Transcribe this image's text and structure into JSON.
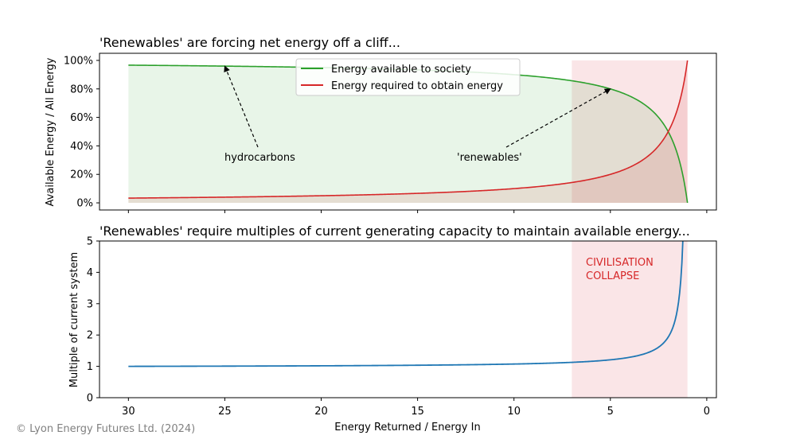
{
  "copyright": "© Lyon Energy Futures Ltd. (2024)",
  "colors": {
    "available": "#2ca02c",
    "required": "#d62728",
    "multiple": "#1f77b4",
    "collapse_region": "#f4c6c9",
    "collapse_text": "#d62728",
    "copyright": "#808080"
  },
  "chart_data": [
    {
      "type": "line",
      "title": "'Renewables' are forcing net energy off a cliff...",
      "xlabel": "",
      "ylabel": "Available Energy / All Energy",
      "x_from": 30,
      "x_to": 1,
      "xlim": [
        31.5,
        -0.5
      ],
      "ylim": [
        -0.05,
        1.05
      ],
      "x_ticks": [
        30,
        25,
        20,
        15,
        10,
        5,
        0
      ],
      "x_tick_labels": [
        "",
        "",
        "",
        "",
        "",
        "",
        ""
      ],
      "y_ticks": [
        0,
        0.2,
        0.4,
        0.6,
        0.8,
        1.0
      ],
      "y_tick_labels": [
        "0%",
        "20%",
        "40%",
        "60%",
        "80%",
        "100%"
      ],
      "series": [
        {
          "name": "Energy available to society",
          "formula": "1 - 1/x"
        },
        {
          "name": "Energy required to obtain energy",
          "formula": "1/x"
        }
      ],
      "shaded_region_x": [
        7,
        1
      ],
      "legend_position": "top-center",
      "annotations": [
        {
          "text": "hydrocarbons",
          "arrow_to": [
            25,
            0.96
          ]
        },
        {
          "text": "'renewables'",
          "arrow_to": [
            5,
            0.8
          ]
        }
      ]
    },
    {
      "type": "line",
      "title": "'Renewables' require multiples of current generating capacity to maintain available energy...",
      "xlabel": "Energy Returned / Energy In",
      "ylabel": "Multiple of current system",
      "xlim": [
        31.5,
        -0.5
      ],
      "ylim": [
        0,
        5
      ],
      "x_ticks": [
        30,
        25,
        20,
        15,
        10,
        5,
        0
      ],
      "x_tick_labels": [
        "30",
        "25",
        "20",
        "15",
        "10",
        "5",
        "0"
      ],
      "y_ticks": [
        0,
        1,
        2,
        3,
        4,
        5
      ],
      "y_tick_labels": [
        "0",
        "1",
        "2",
        "3",
        "4",
        "5"
      ],
      "series": [
        {
          "formula": "(1 - 1/30) / (1 - 1/x)"
        }
      ],
      "shaded_region_x": [
        7,
        1
      ],
      "annotation": {
        "text_line1": "CIVILISATION",
        "text_line2": "COLLAPSE"
      }
    }
  ]
}
